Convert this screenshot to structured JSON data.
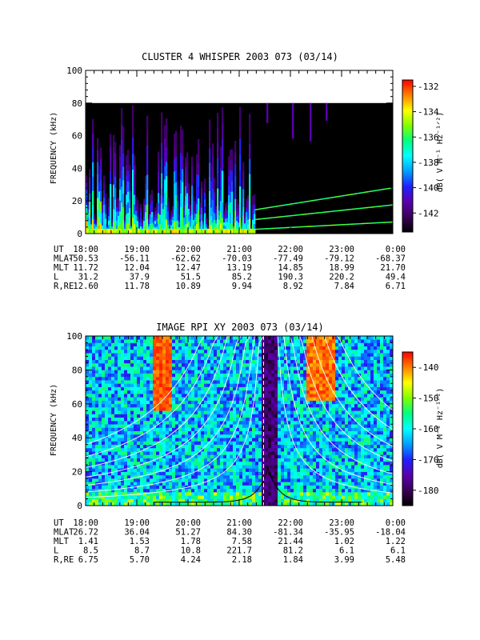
{
  "colors": {
    "background": "#ffffff",
    "axis": "#000000",
    "colorbar_stops": [
      "#000000",
      "#3a0058",
      "#5a00b0",
      "#2020ff",
      "#00a0ff",
      "#00ffff",
      "#00ff80",
      "#80ff00",
      "#ffff00",
      "#ff8000",
      "#ff0000"
    ]
  },
  "chart_data": [
    {
      "type": "heatmap",
      "title": "CLUSTER 4 WHISPER 2003 073 (03/14)",
      "ylabel": "FREQUENCY (kHz)",
      "ylim": [
        0,
        100
      ],
      "yticks": [
        "0",
        "20",
        "40",
        "60",
        "80",
        "100"
      ],
      "xticks": [
        "18:00",
        "19:00",
        "20:00",
        "21:00",
        "22:00",
        "23:00",
        "0:00"
      ],
      "data_top_khz": 80,
      "colorbar": {
        "label": "dB( V M⁻¹ Hz⁻¹ᐟ²)",
        "range": [
          -143.5,
          -131.5
        ],
        "ticks": [
          "-132",
          "-134",
          "-136",
          "-138",
          "-140",
          "-142"
        ]
      },
      "ephemeris": [
        {
          "label": "UT",
          "values": [
            "18:00",
            "19:00",
            "20:00",
            "21:00",
            "22:00",
            "23:00",
            "0:00"
          ]
        },
        {
          "label": "MLAT",
          "values": [
            "-50.53",
            "-56.11",
            "-62.62",
            "-70.03",
            "-77.49",
            "-79.12",
            "-68.37"
          ]
        },
        {
          "label": "MLT",
          "values": [
            "11.72",
            "12.04",
            "12.47",
            "13.19",
            "14.85",
            "18.99",
            "21.70"
          ]
        },
        {
          "label": "L",
          "values": [
            "31.2",
            "37.9",
            "51.5",
            "85.2",
            "190.3",
            "220.2",
            "49.4"
          ]
        },
        {
          "label": "R,RE",
          "values": [
            "12.60",
            "11.78",
            "10.89",
            "9.94",
            "8.92",
            "7.84",
            "6.71"
          ]
        }
      ]
    },
    {
      "type": "heatmap",
      "title": "IMAGE RPI XY 2003 073 (03/14)",
      "ylabel": "FREQUENCY (kHz)",
      "ylim": [
        0,
        100
      ],
      "yticks": [
        "0",
        "20",
        "40",
        "60",
        "80",
        "100"
      ],
      "xticks": [
        "18:00",
        "19:00",
        "20:00",
        "21:00",
        "22:00",
        "23:00",
        "0:00"
      ],
      "colorbar": {
        "label": "dB( V M⁻¹ Hz⁻¹ᐟ²)",
        "range": [
          -185,
          -135
        ],
        "ticks": [
          "-140",
          "-150",
          "-160",
          "-170",
          "-180"
        ]
      },
      "ephemeris": [
        {
          "label": "UT",
          "values": [
            "18:00",
            "19:00",
            "20:00",
            "21:00",
            "22:00",
            "23:00",
            "0:00"
          ]
        },
        {
          "label": "MLAT",
          "values": [
            "26.72",
            "36.04",
            "51.27",
            "84.30",
            "-81.34",
            "-35.95",
            "-18.04"
          ]
        },
        {
          "label": "MLT",
          "values": [
            "1.41",
            "1.53",
            "1.78",
            "7.58",
            "21.44",
            "1.02",
            "1.22"
          ]
        },
        {
          "label": "L",
          "values": [
            "8.5",
            "8.7",
            "10.8",
            "221.7",
            "81.2",
            "6.1",
            "6.1"
          ]
        },
        {
          "label": "R,RE",
          "values": [
            "6.75",
            "5.70",
            "4.24",
            "2.18",
            "1.84",
            "3.99",
            "5.48"
          ]
        }
      ]
    }
  ]
}
